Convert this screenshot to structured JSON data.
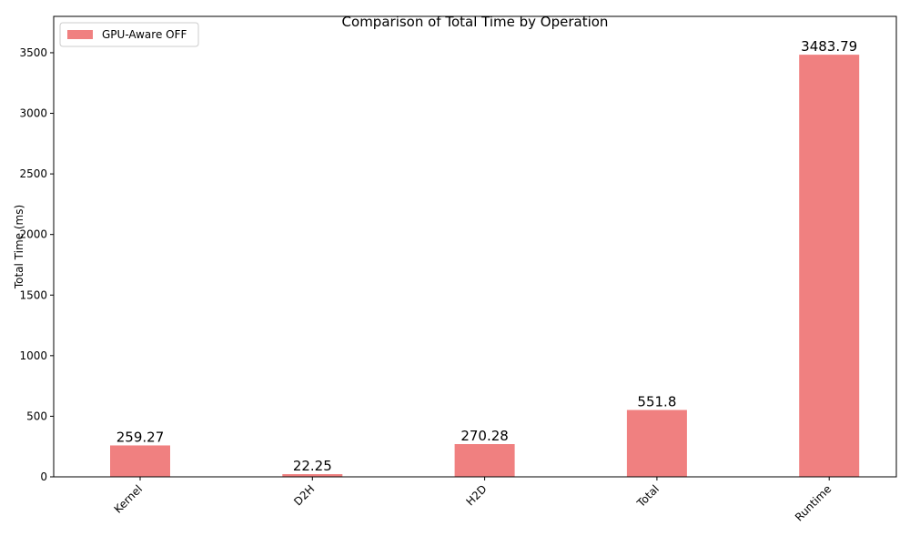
{
  "chart_data": {
    "type": "bar",
    "title": "Comparison of Total Time by Operation",
    "y_label": "Total Time (ms)",
    "categories": [
      "Kernel",
      "D2H",
      "H2D",
      "Total",
      "Runtime"
    ],
    "series": [
      {
        "name": "GPU-Aware OFF",
        "color": "#f08080",
        "values": [
          259.27,
          22.25,
          270.28,
          551.8,
          3483.79
        ]
      }
    ],
    "ylim": [
      0,
      3800
    ],
    "yticks": [
      0,
      500,
      1000,
      1500,
      2000,
      2500,
      3000,
      3500
    ],
    "grid": false,
    "legend": "upper left"
  }
}
